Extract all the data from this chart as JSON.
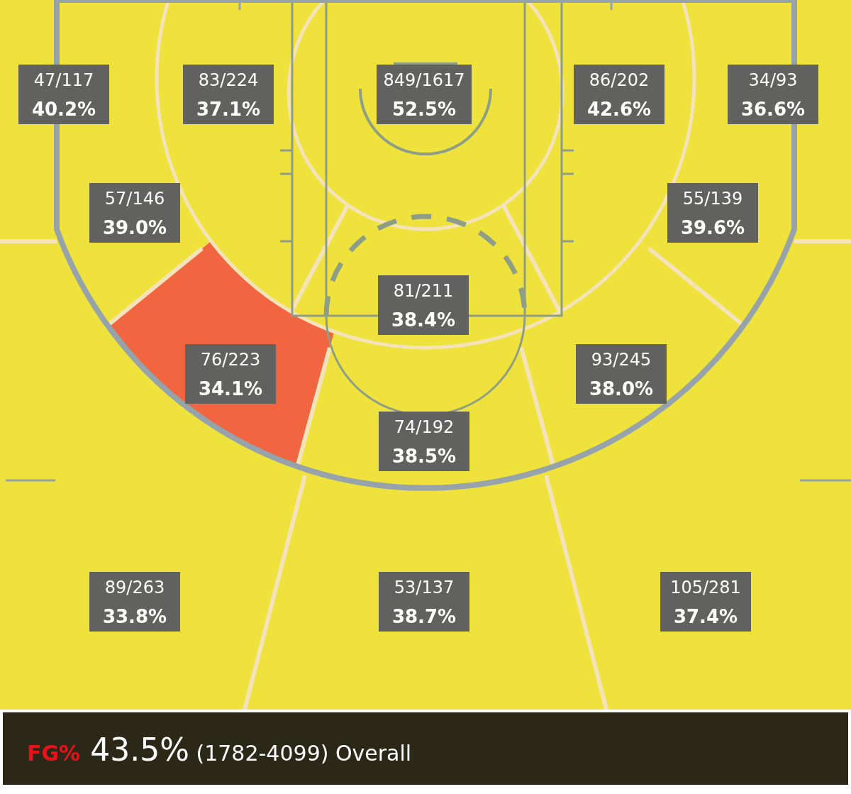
{
  "chart_data": {
    "type": "other",
    "title": "FG% 43.5% (1782-4099) Overall",
    "categories": [
      null,
      null,
      null,
      null,
      null,
      null,
      null,
      null,
      null,
      null,
      null,
      null,
      null,
      null
    ],
    "values": [
      40.2,
      37.1,
      52.5,
      42.6,
      36.6,
      39.0,
      39.6,
      38.4,
      34.1,
      38.0,
      38.5,
      33.8,
      38.7,
      37.4
    ],
    "value_labels": [
      "40.2%",
      "37.1%",
      "52.5%",
      "42.6%",
      "36.6%",
      "39.0%",
      "39.6%",
      "38.4%",
      "34.1%",
      "38.0%",
      "38.5%",
      "33.8%",
      "38.7%",
      "37.4%"
    ],
    "annotations": [
      "47/117",
      "83/224",
      "849/1617",
      "86/202",
      "34/93",
      "57/146",
      "55/139",
      "81/211",
      "76/223",
      "93/245",
      "74/192",
      "89/263",
      "53/137",
      "105/281"
    ],
    "colors": [
      "#f0e23c",
      "#f0e23c",
      "#f0e23c",
      "#f0e23c",
      "#f0e23c",
      "#f0e23c",
      "#f0e23c",
      "#f0e23c",
      "#f26541",
      "#f0e23c",
      "#f0e23c",
      "#f0e23c",
      "#f0e23c",
      "#f0e23c"
    ]
  }
}
